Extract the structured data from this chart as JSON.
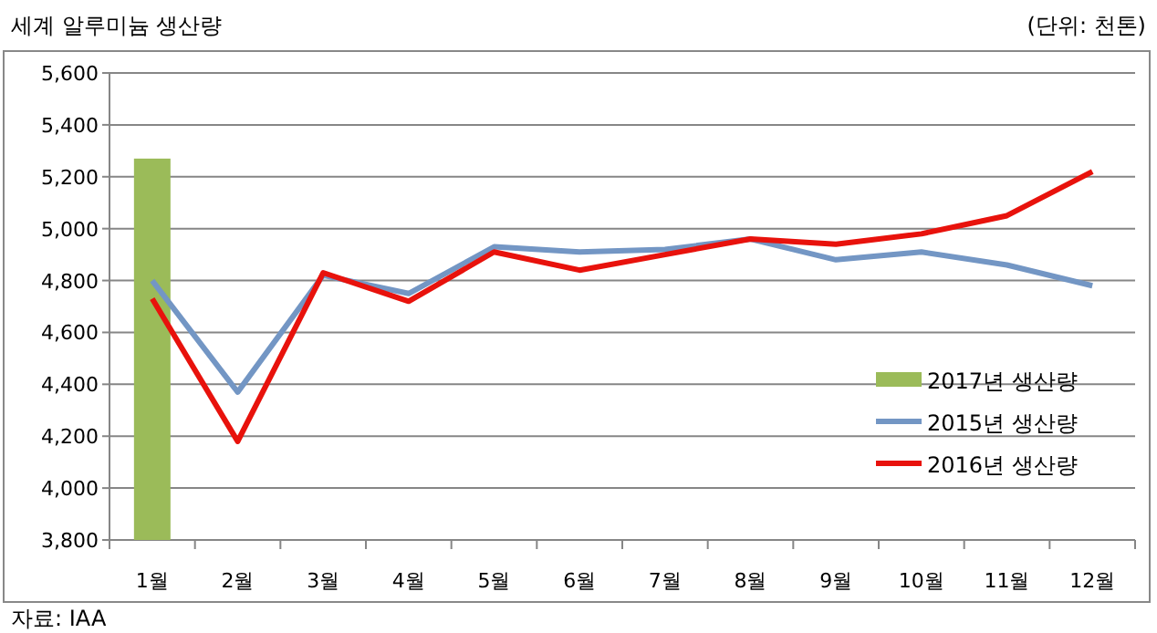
{
  "chart_data": {
    "type": "line",
    "title": "세계 알루미늄 생산량",
    "annotations": [
      "(단위: 천톤)",
      "자료: IAA"
    ],
    "categories": [
      "1월",
      "2월",
      "3월",
      "4월",
      "5월",
      "6월",
      "7월",
      "8월",
      "9월",
      "10월",
      "11월",
      "12월"
    ],
    "series": [
      {
        "name": "2017년 생산량",
        "type": "bar",
        "color": "#9bbb59",
        "values": [
          5270,
          null,
          null,
          null,
          null,
          null,
          null,
          null,
          null,
          null,
          null,
          null
        ]
      },
      {
        "name": "2015년 생산량",
        "color": "#7396c4",
        "values": [
          4800,
          4370,
          4820,
          4750,
          4930,
          4910,
          4920,
          4960,
          4880,
          4910,
          4860,
          4780
        ]
      },
      {
        "name": "2016년 생산량",
        "color": "#e8120c",
        "values": [
          4730,
          4180,
          4830,
          4720,
          4910,
          4840,
          4900,
          4960,
          4940,
          4980,
          5050,
          5220
        ]
      }
    ],
    "ylim": [
      3800,
      5600
    ],
    "yticks": [
      {
        "value": 3800,
        "label": "3,800"
      },
      {
        "value": 4000,
        "label": "4,000"
      },
      {
        "value": 4200,
        "label": "4,200"
      },
      {
        "value": 4400,
        "label": "4,400"
      },
      {
        "value": 4600,
        "label": "4,600"
      },
      {
        "value": 4800,
        "label": "4,800"
      },
      {
        "value": 5000,
        "label": "5,000"
      },
      {
        "value": 5200,
        "label": "5,200"
      },
      {
        "value": 5400,
        "label": "5,400"
      },
      {
        "value": 5600,
        "label": "5,600"
      }
    ],
    "grid": "y",
    "legend": "bottom right"
  }
}
